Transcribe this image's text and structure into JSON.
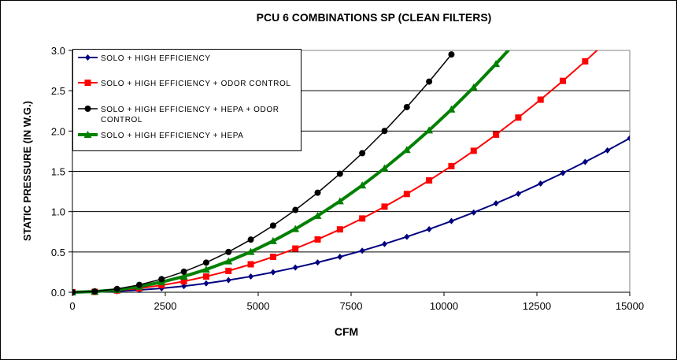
{
  "chart_data": {
    "type": "line",
    "title": "PCU 6 COMBINATIONS SP (CLEAN FILTERS)",
    "xlabel": "CFM",
    "ylabel": "STATIC PRESSURE (IN W.G.)",
    "xlim": [
      0,
      15000
    ],
    "ylim": [
      0,
      3.0
    ],
    "xticks": [
      "0",
      "2500",
      "5000",
      "7500",
      "10000",
      "12500",
      "15000"
    ],
    "yticks": [
      "0.0",
      "0.5",
      "1.0",
      "1.5",
      "2.0",
      "2.5",
      "3.0"
    ],
    "grid": "horizontal",
    "legend_position": "top-left",
    "series": [
      {
        "name": "SOLO + HIGH EFFICIENCY",
        "color": "#000080",
        "marker": "diamond",
        "width": 2,
        "x": [
          0,
          600,
          1200,
          1800,
          2400,
          3000,
          3600,
          4200,
          4800,
          5400,
          6000,
          6600,
          7200,
          7800,
          8400,
          9000,
          9600,
          10200,
          10800,
          11400,
          12000,
          12600,
          13200,
          13800,
          14400,
          15000
        ],
        "y": [
          0,
          0.003,
          0.012,
          0.028,
          0.049,
          0.076,
          0.11,
          0.15,
          0.196,
          0.248,
          0.306,
          0.37,
          0.44,
          0.516,
          0.599,
          0.688,
          0.782,
          0.883,
          0.99,
          1.103,
          1.222,
          1.348,
          1.479,
          1.617,
          1.76,
          1.91
        ]
      },
      {
        "name": "SOLO + HIGH EFFICIENCY + ODOR CONTROL",
        "color": "#ff0000",
        "marker": "square",
        "width": 2,
        "x": [
          0,
          600,
          1200,
          1800,
          2400,
          3000,
          3600,
          4200,
          4800,
          5400,
          6000,
          6600,
          7200,
          7800,
          8400,
          9000,
          9600,
          10200,
          10800,
          11400,
          12000,
          12600,
          13200,
          13800,
          14400
        ],
        "y": [
          0,
          0.005,
          0.022,
          0.049,
          0.087,
          0.135,
          0.195,
          0.265,
          0.347,
          0.439,
          0.542,
          0.655,
          0.78,
          0.915,
          1.062,
          1.219,
          1.387,
          1.565,
          1.755,
          1.955,
          2.167,
          2.389,
          2.622,
          2.865,
          3.12
        ]
      },
      {
        "name": "SOLO + HIGH EFFICIENCY + HEPA + ODOR CONTROL",
        "color": "#000000",
        "marker": "circle",
        "width": 1.5,
        "x": [
          0,
          600,
          1200,
          1800,
          2400,
          3000,
          3600,
          4200,
          4800,
          5400,
          6000,
          6600,
          7200,
          7800,
          8400,
          9000,
          9600,
          10200
        ],
        "y": [
          0,
          0.01,
          0.041,
          0.092,
          0.163,
          0.255,
          0.368,
          0.5,
          0.653,
          0.827,
          1.021,
          1.235,
          1.47,
          1.725,
          2.001,
          2.297,
          2.613,
          2.95
        ]
      },
      {
        "name": "SOLO + HIGH EFFICIENCY + HEPA",
        "color": "#008000",
        "marker": "triangle",
        "width": 4,
        "x": [
          0,
          600,
          1200,
          1800,
          2400,
          3000,
          3600,
          4200,
          4800,
          5400,
          6000,
          6600,
          7200,
          7800,
          8400,
          9000,
          9600,
          10200,
          10800,
          11400,
          12000
        ],
        "y": [
          0,
          0.008,
          0.031,
          0.071,
          0.126,
          0.196,
          0.282,
          0.385,
          0.502,
          0.636,
          0.785,
          0.949,
          1.13,
          1.326,
          1.538,
          1.766,
          2.009,
          2.268,
          2.542,
          2.833,
          3.139
        ]
      }
    ],
    "legend_lines": [
      [
        "SOLO + HIGH EFFICIENCY"
      ],
      [
        "SOLO + HIGH EFFICIENCY + ODOR CONTROL"
      ],
      [
        "SOLO + HIGH EFFICIENCY + HEPA + ODOR",
        "CONTROL"
      ],
      [
        "SOLO + HIGH EFFICIENCY + HEPA"
      ]
    ]
  }
}
